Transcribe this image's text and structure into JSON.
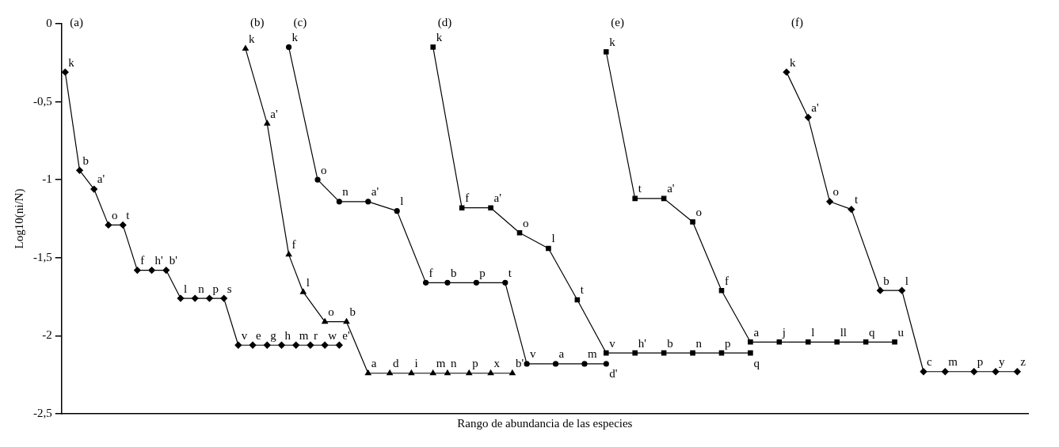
{
  "chart_data": {
    "type": "line",
    "xlabel": "Rango de abundancia de las especies",
    "ylabel": "Log10(ni/N)",
    "annotations": [
      "(a)",
      "(b)",
      "(c)",
      "(d)",
      "(e)",
      "(f)"
    ],
    "ylim": [
      -2.5,
      0
    ],
    "yticks": [
      0,
      {
        "value": -0.5,
        "label": "-0,5"
      },
      -1,
      {
        "value": -1.5,
        "label": "-1,5"
      },
      -2,
      {
        "value": -2.5,
        "label": "-2,5"
      }
    ],
    "grid": false,
    "tick_labels": "y",
    "categories": [
      null,
      null,
      null,
      null,
      null,
      null,
      null,
      null,
      null,
      null,
      null,
      null,
      null,
      null,
      null,
      null,
      null,
      null,
      null,
      null,
      null,
      null,
      null,
      null,
      null,
      null,
      null,
      null,
      null,
      null,
      null,
      null,
      null,
      null,
      null,
      null,
      null,
      null,
      null,
      null,
      null,
      null,
      null,
      null,
      null,
      null,
      null,
      null,
      null,
      null,
      null,
      null,
      null,
      null,
      null,
      null,
      null,
      null,
      null,
      null,
      null,
      null,
      null,
      null,
      null,
      null,
      null,
      null,
      null,
      null,
      null,
      null,
      null,
      null,
      null,
      null,
      null,
      null,
      null,
      null,
      null,
      null,
      null,
      null,
      null,
      null,
      null,
      null,
      null,
      null,
      null,
      null,
      null,
      null,
      null,
      null,
      null,
      null,
      null,
      null,
      null,
      null,
      null,
      null,
      null,
      null,
      null,
      null,
      null,
      null,
      null,
      null,
      null,
      null,
      null,
      null,
      null,
      null,
      null,
      null,
      null,
      null,
      null,
      null,
      null,
      null,
      null,
      null,
      null,
      null,
      null,
      null,
      null,
      null
    ],
    "series": [
      {
        "color": "#000000",
        "marker": "diamond",
        "values": [
          -0.31,
          null,
          -0.94,
          null,
          -1.06,
          null,
          -1.29,
          null,
          -1.29,
          null,
          -1.58,
          null,
          -1.58,
          null,
          -1.58,
          null,
          -1.76,
          null,
          -1.76,
          null,
          -1.76,
          null,
          -1.76,
          null,
          -2.06,
          null,
          -2.06,
          null,
          -2.06,
          null,
          -2.06,
          null,
          -2.06,
          null,
          -2.06,
          null,
          -2.06,
          null,
          -2.06,
          null,
          null,
          null,
          null,
          null,
          null,
          null,
          null,
          null,
          null,
          null,
          null,
          null,
          null,
          null,
          null,
          null,
          null,
          null,
          null,
          null,
          null,
          null,
          null,
          null,
          null,
          null,
          null,
          null,
          null,
          null,
          null,
          null,
          null,
          null,
          null,
          null,
          null,
          null,
          null,
          null,
          null,
          null,
          null,
          null,
          null,
          null,
          null,
          null,
          null,
          null,
          null,
          null,
          null,
          null,
          null,
          null,
          null,
          null,
          null,
          null,
          null,
          null,
          null,
          null,
          null,
          null,
          null,
          null,
          null,
          null,
          null,
          null,
          null,
          null,
          null,
          null,
          null,
          null,
          null,
          null,
          null,
          null,
          null,
          null,
          null,
          null,
          null,
          null,
          null,
          null,
          null,
          null,
          null,
          null
        ],
        "value_labels": [
          "k",
          null,
          "b",
          null,
          "a'",
          null,
          "o",
          null,
          "t",
          null,
          "f",
          null,
          "h'",
          null,
          "b'",
          null,
          "l",
          null,
          "n",
          null,
          "p",
          null,
          "s",
          null,
          "v",
          null,
          "e",
          null,
          "g",
          null,
          "h",
          null,
          "m",
          null,
          "r",
          null,
          "w",
          null,
          "e'",
          null,
          null,
          null,
          null,
          null,
          null,
          null,
          null,
          null,
          null,
          null,
          null,
          null,
          null,
          null,
          null,
          null,
          null,
          null,
          null,
          null,
          null,
          null,
          null,
          null,
          null,
          null,
          null,
          null,
          null,
          null,
          null,
          null,
          null,
          null,
          null,
          null,
          null,
          null,
          null,
          null,
          null,
          null,
          null,
          null,
          null,
          null,
          null,
          null,
          null,
          null,
          null,
          null,
          null,
          null,
          null,
          null,
          null,
          null,
          null,
          null,
          null,
          null,
          null,
          null,
          null,
          null,
          null,
          null,
          null,
          null,
          null,
          null,
          null,
          null,
          null,
          null,
          null,
          null,
          null,
          null,
          null,
          null,
          null,
          null,
          null,
          null,
          null,
          null,
          null,
          null,
          null,
          null,
          null,
          null
        ]
      },
      {
        "color": "#000000",
        "marker": "triangle",
        "values": [
          null,
          null,
          null,
          null,
          null,
          null,
          null,
          null,
          null,
          null,
          null,
          null,
          null,
          null,
          null,
          null,
          null,
          null,
          null,
          null,
          null,
          null,
          null,
          null,
          null,
          -0.16,
          null,
          null,
          -0.64,
          null,
          null,
          -1.48,
          null,
          -1.72,
          null,
          null,
          -1.91,
          null,
          null,
          -1.91,
          null,
          null,
          -2.24,
          null,
          null,
          -2.24,
          null,
          null,
          -2.24,
          null,
          null,
          -2.24,
          null,
          -2.24,
          null,
          null,
          -2.24,
          null,
          null,
          -2.24,
          null,
          null,
          -2.24,
          null,
          null,
          null,
          null,
          null,
          null,
          null,
          null,
          null,
          null,
          null,
          null,
          null,
          null,
          null,
          null,
          null,
          null,
          null,
          null,
          null,
          null,
          null,
          null,
          null,
          null,
          null,
          null,
          null,
          null,
          null,
          null,
          null,
          null,
          null,
          null,
          null,
          null,
          null,
          null,
          null,
          null,
          null,
          null,
          null,
          null,
          null,
          null,
          null,
          null,
          null,
          null,
          null,
          null,
          null,
          null,
          null,
          null,
          null,
          null,
          null,
          null,
          null,
          null,
          null,
          null,
          null,
          null,
          null,
          null,
          null
        ],
        "value_labels": [
          null,
          null,
          null,
          null,
          null,
          null,
          null,
          null,
          null,
          null,
          null,
          null,
          null,
          null,
          null,
          null,
          null,
          null,
          null,
          null,
          null,
          null,
          null,
          null,
          null,
          "k",
          null,
          null,
          "a'",
          null,
          null,
          "f",
          null,
          "l",
          null,
          null,
          "o",
          null,
          null,
          "b",
          null,
          null,
          "a",
          null,
          null,
          "d",
          null,
          null,
          "i",
          null,
          null,
          "m",
          null,
          "n",
          null,
          null,
          "p",
          null,
          null,
          "x",
          null,
          null,
          "b'",
          null,
          null,
          null,
          null,
          null,
          null,
          null,
          null,
          null,
          null,
          null,
          null,
          null,
          null,
          null,
          null,
          null,
          null,
          null,
          null,
          null,
          null,
          null,
          null,
          null,
          null,
          null,
          null,
          null,
          null,
          null,
          null,
          null,
          null,
          null,
          null,
          null,
          null,
          null,
          null,
          null,
          null,
          null,
          null,
          null,
          null,
          null,
          null,
          null,
          null,
          null,
          null,
          null,
          null,
          null,
          null,
          null,
          null,
          null,
          null,
          null,
          null,
          null,
          null,
          null,
          null,
          null,
          null,
          null,
          null,
          null
        ]
      },
      {
        "color": "#000000",
        "marker": "circle",
        "values": [
          null,
          null,
          null,
          null,
          null,
          null,
          null,
          null,
          null,
          null,
          null,
          null,
          null,
          null,
          null,
          null,
          null,
          null,
          null,
          null,
          null,
          null,
          null,
          null,
          null,
          null,
          null,
          null,
          null,
          null,
          null,
          -0.15,
          null,
          null,
          null,
          -1.0,
          null,
          null,
          -1.14,
          null,
          null,
          null,
          -1.14,
          null,
          null,
          null,
          -1.2,
          null,
          null,
          null,
          -1.66,
          null,
          null,
          -1.66,
          null,
          null,
          null,
          -1.66,
          null,
          null,
          null,
          -1.66,
          null,
          null,
          -2.18,
          null,
          null,
          null,
          -2.18,
          null,
          null,
          null,
          -2.18,
          null,
          null,
          -2.18,
          null,
          null,
          null,
          null,
          null,
          null,
          null,
          null,
          null,
          null,
          null,
          null,
          null,
          null,
          null,
          null,
          null,
          null,
          null,
          null,
          null,
          null,
          null,
          null,
          null,
          null,
          null,
          null,
          null,
          null,
          null,
          null,
          null,
          null,
          null,
          null,
          null,
          null,
          null,
          null,
          null,
          null,
          null,
          null,
          null,
          null,
          null,
          null,
          null,
          null,
          null,
          null,
          null,
          null,
          null,
          null,
          null,
          null
        ],
        "value_labels": [
          null,
          null,
          null,
          null,
          null,
          null,
          null,
          null,
          null,
          null,
          null,
          null,
          null,
          null,
          null,
          null,
          null,
          null,
          null,
          null,
          null,
          null,
          null,
          null,
          null,
          null,
          null,
          null,
          null,
          null,
          null,
          "k",
          null,
          null,
          null,
          "o",
          null,
          null,
          "n",
          null,
          null,
          null,
          "a'",
          null,
          null,
          null,
          "l",
          null,
          null,
          null,
          "f",
          null,
          null,
          "b",
          null,
          null,
          null,
          "p",
          null,
          null,
          null,
          "t",
          null,
          null,
          "v",
          null,
          null,
          null,
          "a",
          null,
          null,
          null,
          "m",
          null,
          null,
          "d'",
          null,
          null,
          null,
          null,
          null,
          null,
          null,
          null,
          null,
          null,
          null,
          null,
          null,
          null,
          null,
          null,
          null,
          null,
          null,
          null,
          null,
          null,
          null,
          null,
          null,
          null,
          null,
          null,
          null,
          null,
          null,
          null,
          null,
          null,
          null,
          null,
          null,
          null,
          null,
          null,
          null,
          null,
          null,
          null,
          null,
          null,
          null,
          null,
          null,
          null,
          null,
          null,
          null,
          null,
          null,
          null,
          null,
          null
        ]
      },
      {
        "color": "#000000",
        "marker": "square",
        "values": [
          null,
          null,
          null,
          null,
          null,
          null,
          null,
          null,
          null,
          null,
          null,
          null,
          null,
          null,
          null,
          null,
          null,
          null,
          null,
          null,
          null,
          null,
          null,
          null,
          null,
          null,
          null,
          null,
          null,
          null,
          null,
          null,
          null,
          null,
          null,
          null,
          null,
          null,
          null,
          null,
          null,
          null,
          null,
          null,
          null,
          null,
          null,
          null,
          null,
          null,
          null,
          -0.15,
          null,
          null,
          null,
          -1.18,
          null,
          null,
          null,
          -1.18,
          null,
          null,
          null,
          -1.34,
          null,
          null,
          null,
          -1.44,
          null,
          null,
          null,
          -1.77,
          null,
          null,
          null,
          -2.11,
          null,
          null,
          null,
          -2.11,
          null,
          null,
          null,
          -2.11,
          null,
          null,
          null,
          -2.11,
          null,
          null,
          null,
          -2.11,
          null,
          null,
          null,
          -2.11,
          null,
          null,
          null,
          null,
          null,
          null,
          null,
          null,
          null,
          null,
          null,
          null,
          null,
          null,
          null,
          null,
          null,
          null,
          null,
          null,
          null,
          null,
          null,
          null,
          null,
          null,
          null,
          null,
          null,
          null,
          null,
          null,
          null,
          null,
          null,
          null,
          null,
          null
        ],
        "value_labels": [
          null,
          null,
          null,
          null,
          null,
          null,
          null,
          null,
          null,
          null,
          null,
          null,
          null,
          null,
          null,
          null,
          null,
          null,
          null,
          null,
          null,
          null,
          null,
          null,
          null,
          null,
          null,
          null,
          null,
          null,
          null,
          null,
          null,
          null,
          null,
          null,
          null,
          null,
          null,
          null,
          null,
          null,
          null,
          null,
          null,
          null,
          null,
          null,
          null,
          null,
          null,
          "k",
          null,
          null,
          null,
          "f",
          null,
          null,
          null,
          "a'",
          null,
          null,
          null,
          "o",
          null,
          null,
          null,
          "l",
          null,
          null,
          null,
          "t",
          null,
          null,
          null,
          "v",
          null,
          null,
          null,
          "h'",
          null,
          null,
          null,
          "b",
          null,
          null,
          null,
          "n",
          null,
          null,
          null,
          "p",
          null,
          null,
          null,
          "q",
          null,
          null,
          null,
          null,
          null,
          null,
          null,
          null,
          null,
          null,
          null,
          null,
          null,
          null,
          null,
          null,
          null,
          null,
          null,
          null,
          null,
          null,
          null,
          null,
          null,
          null,
          null,
          null,
          null,
          null,
          null,
          null,
          null,
          null,
          null,
          null,
          null,
          null
        ]
      },
      {
        "color": "#000000",
        "marker": "square",
        "values": [
          null,
          null,
          null,
          null,
          null,
          null,
          null,
          null,
          null,
          null,
          null,
          null,
          null,
          null,
          null,
          null,
          null,
          null,
          null,
          null,
          null,
          null,
          null,
          null,
          null,
          null,
          null,
          null,
          null,
          null,
          null,
          null,
          null,
          null,
          null,
          null,
          null,
          null,
          null,
          null,
          null,
          null,
          null,
          null,
          null,
          null,
          null,
          null,
          null,
          null,
          null,
          null,
          null,
          null,
          null,
          null,
          null,
          null,
          null,
          null,
          null,
          null,
          null,
          null,
          null,
          null,
          null,
          null,
          null,
          null,
          null,
          null,
          null,
          null,
          null,
          -0.18,
          null,
          null,
          null,
          -1.12,
          null,
          null,
          null,
          -1.12,
          null,
          null,
          null,
          -1.27,
          null,
          null,
          null,
          -1.71,
          null,
          null,
          null,
          -2.04,
          null,
          null,
          null,
          -2.04,
          null,
          null,
          null,
          -2.04,
          null,
          null,
          null,
          -2.04,
          null,
          null,
          null,
          -2.04,
          null,
          null,
          null,
          -2.04,
          null,
          null,
          null,
          null,
          null,
          null,
          null,
          null,
          null,
          null,
          null,
          null,
          null,
          null,
          null,
          null,
          null,
          null
        ],
        "value_labels": [
          null,
          null,
          null,
          null,
          null,
          null,
          null,
          null,
          null,
          null,
          null,
          null,
          null,
          null,
          null,
          null,
          null,
          null,
          null,
          null,
          null,
          null,
          null,
          null,
          null,
          null,
          null,
          null,
          null,
          null,
          null,
          null,
          null,
          null,
          null,
          null,
          null,
          null,
          null,
          null,
          null,
          null,
          null,
          null,
          null,
          null,
          null,
          null,
          null,
          null,
          null,
          null,
          null,
          null,
          null,
          null,
          null,
          null,
          null,
          null,
          null,
          null,
          null,
          null,
          null,
          null,
          null,
          null,
          null,
          null,
          null,
          null,
          null,
          null,
          null,
          "k",
          null,
          null,
          null,
          "t",
          null,
          null,
          null,
          "a'",
          null,
          null,
          null,
          "o",
          null,
          null,
          null,
          "f",
          null,
          null,
          null,
          "a",
          null,
          null,
          null,
          "j",
          null,
          null,
          null,
          "l",
          null,
          null,
          null,
          "ll",
          null,
          null,
          null,
          "q",
          null,
          null,
          null,
          "u",
          null,
          null,
          null,
          null,
          null,
          null,
          null,
          null,
          null,
          null,
          null,
          null,
          null,
          null,
          null,
          null,
          null,
          null
        ]
      },
      {
        "color": "#000000",
        "marker": "diamond",
        "values": [
          null,
          null,
          null,
          null,
          null,
          null,
          null,
          null,
          null,
          null,
          null,
          null,
          null,
          null,
          null,
          null,
          null,
          null,
          null,
          null,
          null,
          null,
          null,
          null,
          null,
          null,
          null,
          null,
          null,
          null,
          null,
          null,
          null,
          null,
          null,
          null,
          null,
          null,
          null,
          null,
          null,
          null,
          null,
          null,
          null,
          null,
          null,
          null,
          null,
          null,
          null,
          null,
          null,
          null,
          null,
          null,
          null,
          null,
          null,
          null,
          null,
          null,
          null,
          null,
          null,
          null,
          null,
          null,
          null,
          null,
          null,
          null,
          null,
          null,
          null,
          null,
          null,
          null,
          null,
          null,
          null,
          null,
          null,
          null,
          null,
          null,
          null,
          null,
          null,
          null,
          null,
          null,
          null,
          null,
          null,
          null,
          null,
          null,
          null,
          null,
          -0.31,
          null,
          null,
          -0.6,
          null,
          null,
          -1.14,
          null,
          null,
          -1.19,
          null,
          null,
          null,
          -1.71,
          null,
          null,
          -1.71,
          null,
          null,
          -2.23,
          null,
          null,
          -2.23,
          null,
          null,
          null,
          -2.23,
          null,
          null,
          -2.23,
          null,
          null,
          -2.23,
          null
        ],
        "value_labels": [
          null,
          null,
          null,
          null,
          null,
          null,
          null,
          null,
          null,
          null,
          null,
          null,
          null,
          null,
          null,
          null,
          null,
          null,
          null,
          null,
          null,
          null,
          null,
          null,
          null,
          null,
          null,
          null,
          null,
          null,
          null,
          null,
          null,
          null,
          null,
          null,
          null,
          null,
          null,
          null,
          null,
          null,
          null,
          null,
          null,
          null,
          null,
          null,
          null,
          null,
          null,
          null,
          null,
          null,
          null,
          null,
          null,
          null,
          null,
          null,
          null,
          null,
          null,
          null,
          null,
          null,
          null,
          null,
          null,
          null,
          null,
          null,
          null,
          null,
          null,
          null,
          null,
          null,
          null,
          null,
          null,
          null,
          null,
          null,
          null,
          null,
          null,
          null,
          null,
          null,
          null,
          null,
          null,
          null,
          null,
          null,
          null,
          null,
          null,
          null,
          "k",
          null,
          null,
          "a'",
          null,
          null,
          "o",
          null,
          null,
          "t",
          null,
          null,
          null,
          "b",
          null,
          null,
          "l",
          null,
          null,
          "c",
          null,
          null,
          "m",
          null,
          null,
          null,
          "p",
          null,
          null,
          "y",
          null,
          null,
          "z",
          null
        ]
      }
    ]
  }
}
